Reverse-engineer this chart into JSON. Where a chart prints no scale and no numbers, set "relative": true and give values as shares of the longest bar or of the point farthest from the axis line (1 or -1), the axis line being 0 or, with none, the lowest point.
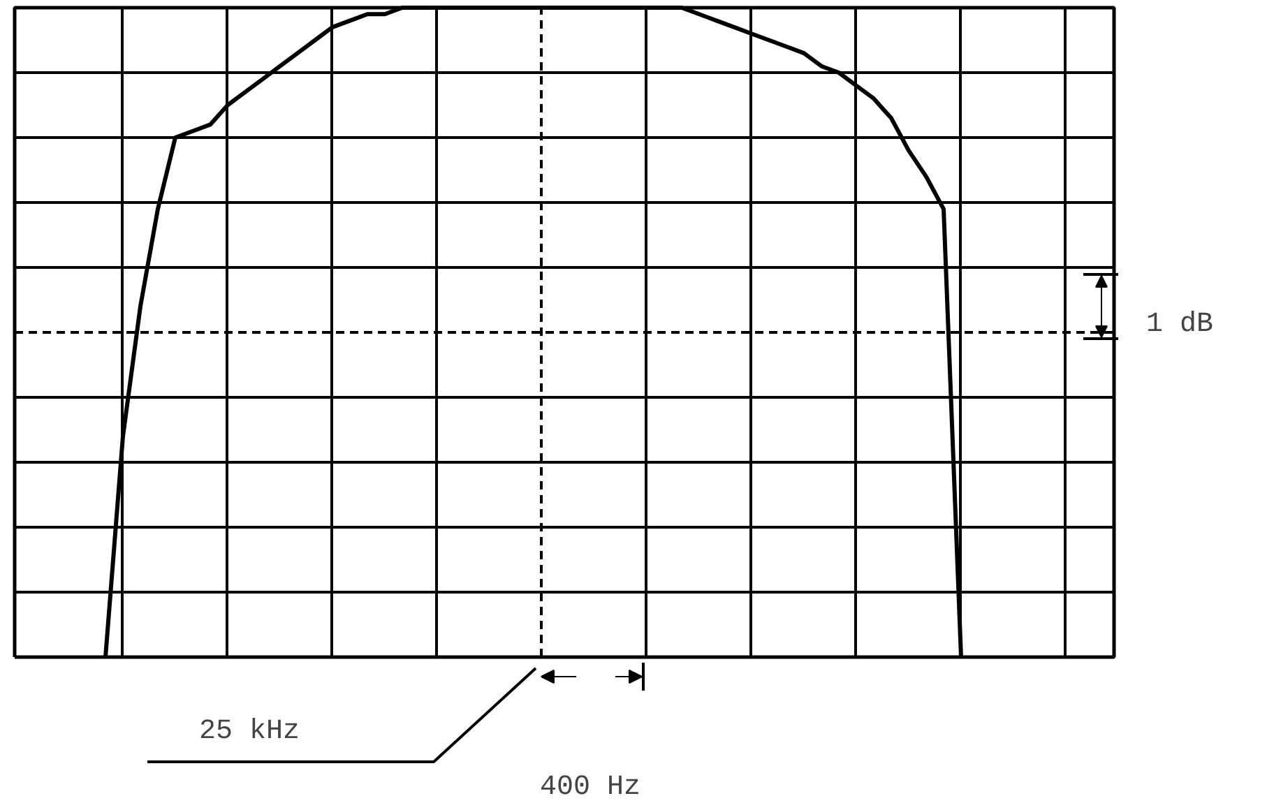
{
  "chart_data": {
    "type": "line",
    "relative": true,
    "grid": true,
    "categories": [
      null,
      null,
      null,
      null,
      null,
      null,
      null,
      null,
      null,
      null,
      null,
      null,
      null,
      null,
      null,
      null,
      null,
      null,
      null,
      null,
      null,
      null,
      null,
      null,
      null,
      null,
      null,
      null,
      null,
      null,
      null,
      null,
      null,
      null,
      null,
      null,
      null,
      null,
      null,
      null,
      null,
      null,
      null,
      null,
      null,
      null,
      null,
      null,
      null,
      null
    ],
    "series": [
      {
        "color": "#000000",
        "values": [
          0,
          0.34,
          0.54,
          0.69,
          0.8,
          0.81,
          0.82,
          0.85,
          0.87,
          0.89,
          0.91,
          0.93,
          0.95,
          0.97,
          0.98,
          0.99,
          0.99,
          1,
          1,
          1,
          1,
          1,
          1,
          1,
          1,
          1,
          1,
          1,
          1,
          1,
          1,
          1,
          1,
          1,
          0.99,
          0.98,
          0.97,
          0.96,
          0.95,
          0.94,
          0.93,
          0.91,
          0.9,
          0.88,
          0.86,
          0.83,
          0.78,
          0.74,
          0.69,
          0
        ]
      }
    ],
    "ref_lines": [
      {
        "axis": "y",
        "value": 0.5,
        "line_style": "dashed"
      }
    ],
    "annotations": [
      "1 dB",
      "25 kHz",
      "400 Hz"
    ]
  }
}
